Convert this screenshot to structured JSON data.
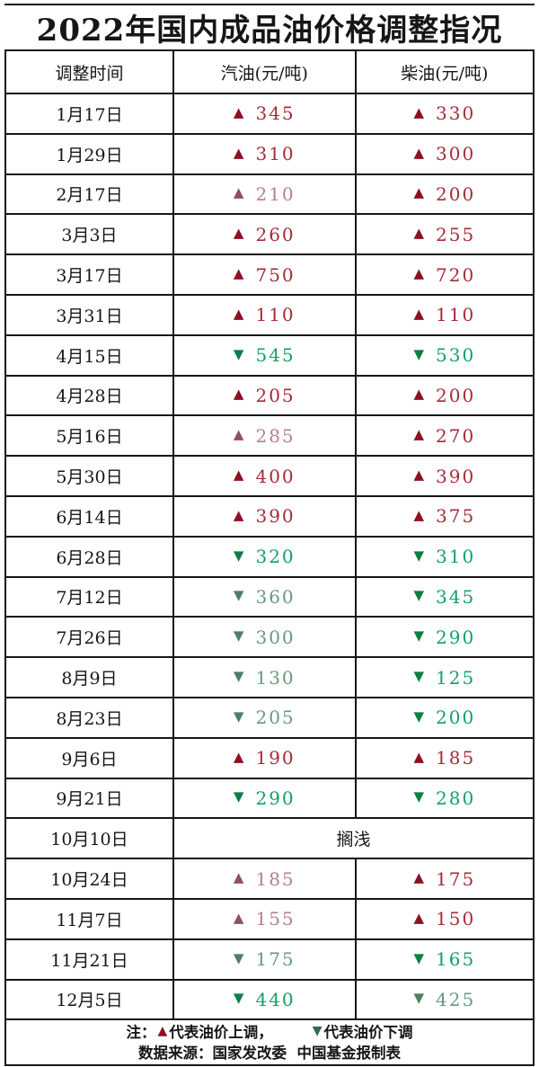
{
  "title": "2022年国内成品油价格调整指况",
  "glyphs": {
    "up": "▲",
    "down": "▼"
  },
  "colors": {
    "border": "#161616",
    "up": {
      "bright": {
        "arrow": "#8e1024",
        "num": "#a62b36"
      },
      "muted": {
        "arrow": "#8f4f5c",
        "num": "#b5818a"
      }
    },
    "down": {
      "bright": {
        "arrow": "#0b7f46",
        "num": "#12a161"
      },
      "muted": {
        "arrow": "#4f7f63",
        "num": "#68997e"
      }
    },
    "note_up": "#8e1024",
    "note_down": "#2f6a4c"
  },
  "header": {
    "date": "调整时间",
    "gasoline": "汽油(元/吨)",
    "diesel": "柴油(元/吨)"
  },
  "rows": [
    {
      "date": "1月17日",
      "gas": {
        "dir": "up",
        "value": "345",
        "tone": "bright"
      },
      "diesel": {
        "dir": "up",
        "value": "330",
        "tone": "bright"
      }
    },
    {
      "date": "1月29日",
      "gas": {
        "dir": "up",
        "value": "310",
        "tone": "bright"
      },
      "diesel": {
        "dir": "up",
        "value": "300",
        "tone": "bright"
      }
    },
    {
      "date": "2月17日",
      "gas": {
        "dir": "up",
        "value": "210",
        "tone": "muted"
      },
      "diesel": {
        "dir": "up",
        "value": "200",
        "tone": "bright"
      }
    },
    {
      "date": "3月3日",
      "gas": {
        "dir": "up",
        "value": "260",
        "tone": "bright"
      },
      "diesel": {
        "dir": "up",
        "value": "255",
        "tone": "bright"
      }
    },
    {
      "date": "3月17日",
      "gas": {
        "dir": "up",
        "value": "750",
        "tone": "bright"
      },
      "diesel": {
        "dir": "up",
        "value": "720",
        "tone": "bright"
      }
    },
    {
      "date": "3月31日",
      "gas": {
        "dir": "up",
        "value": "110",
        "tone": "bright"
      },
      "diesel": {
        "dir": "up",
        "value": "110",
        "tone": "bright"
      }
    },
    {
      "date": "4月15日",
      "gas": {
        "dir": "down",
        "value": "545",
        "tone": "bright"
      },
      "diesel": {
        "dir": "down",
        "value": "530",
        "tone": "bright"
      }
    },
    {
      "date": "4月28日",
      "gas": {
        "dir": "up",
        "value": "205",
        "tone": "bright"
      },
      "diesel": {
        "dir": "up",
        "value": "200",
        "tone": "bright"
      }
    },
    {
      "date": "5月16日",
      "gas": {
        "dir": "up",
        "value": "285",
        "tone": "muted"
      },
      "diesel": {
        "dir": "up",
        "value": "270",
        "tone": "bright"
      }
    },
    {
      "date": "5月30日",
      "gas": {
        "dir": "up",
        "value": "400",
        "tone": "bright"
      },
      "diesel": {
        "dir": "up",
        "value": "390",
        "tone": "bright"
      }
    },
    {
      "date": "6月14日",
      "gas": {
        "dir": "up",
        "value": "390",
        "tone": "bright"
      },
      "diesel": {
        "dir": "up",
        "value": "375",
        "tone": "bright"
      }
    },
    {
      "date": "6月28日",
      "gas": {
        "dir": "down",
        "value": "320",
        "tone": "bright"
      },
      "diesel": {
        "dir": "down",
        "value": "310",
        "tone": "bright"
      }
    },
    {
      "date": "7月12日",
      "gas": {
        "dir": "down",
        "value": "360",
        "tone": "muted"
      },
      "diesel": {
        "dir": "down",
        "value": "345",
        "tone": "bright"
      }
    },
    {
      "date": "7月26日",
      "gas": {
        "dir": "down",
        "value": "300",
        "tone": "muted"
      },
      "diesel": {
        "dir": "down",
        "value": "290",
        "tone": "bright"
      }
    },
    {
      "date": "8月9日",
      "gas": {
        "dir": "down",
        "value": "130",
        "tone": "muted"
      },
      "diesel": {
        "dir": "down",
        "value": "125",
        "tone": "bright"
      }
    },
    {
      "date": "8月23日",
      "gas": {
        "dir": "down",
        "value": "205",
        "tone": "muted"
      },
      "diesel": {
        "dir": "down",
        "value": "200",
        "tone": "bright"
      }
    },
    {
      "date": "9月6日",
      "gas": {
        "dir": "up",
        "value": "190",
        "tone": "bright"
      },
      "diesel": {
        "dir": "up",
        "value": "185",
        "tone": "bright"
      }
    },
    {
      "date": "9月21日",
      "gas": {
        "dir": "down",
        "value": "290",
        "tone": "bright"
      },
      "diesel": {
        "dir": "down",
        "value": "280",
        "tone": "bright"
      }
    },
    {
      "date": "10月10日",
      "merged": "搁浅"
    },
    {
      "date": "10月24日",
      "gas": {
        "dir": "up",
        "value": "185",
        "tone": "muted"
      },
      "diesel": {
        "dir": "up",
        "value": "175",
        "tone": "bright"
      }
    },
    {
      "date": "11月7日",
      "gas": {
        "dir": "up",
        "value": "155",
        "tone": "muted"
      },
      "diesel": {
        "dir": "up",
        "value": "150",
        "tone": "bright"
      }
    },
    {
      "date": "11月21日",
      "gas": {
        "dir": "down",
        "value": "175",
        "tone": "muted"
      },
      "diesel": {
        "dir": "down",
        "value": "165",
        "tone": "bright"
      }
    },
    {
      "date": "12月5日",
      "gas": {
        "dir": "down",
        "value": "440",
        "tone": "bright"
      },
      "diesel": {
        "dir": "down",
        "value": "425",
        "tone": "muted"
      }
    }
  ],
  "footer": {
    "note_prefix": "注：",
    "note_up_text": "代表油价上调，",
    "note_down_text": "代表油价下调",
    "source": "数据来源：国家发改委  中国基金报制表"
  },
  "chart_data": {
    "type": "table",
    "title": "2022年国内成品油价格调整指况",
    "columns": [
      "调整时间",
      "汽油(元/吨)",
      "柴油(元/吨)"
    ],
    "rows": [
      [
        "1月17日",
        "+345",
        "+330"
      ],
      [
        "1月29日",
        "+310",
        "+300"
      ],
      [
        "2月17日",
        "+210",
        "+200"
      ],
      [
        "3月3日",
        "+260",
        "+255"
      ],
      [
        "3月17日",
        "+750",
        "+720"
      ],
      [
        "3月31日",
        "+110",
        "+110"
      ],
      [
        "4月15日",
        "-545",
        "-530"
      ],
      [
        "4月28日",
        "+205",
        "+200"
      ],
      [
        "5月16日",
        "+285",
        "+270"
      ],
      [
        "5月30日",
        "+400",
        "+390"
      ],
      [
        "6月14日",
        "+390",
        "+375"
      ],
      [
        "6月28日",
        "-320",
        "-310"
      ],
      [
        "7月12日",
        "-360",
        "-345"
      ],
      [
        "7月26日",
        "-300",
        "-290"
      ],
      [
        "8月9日",
        "-130",
        "-125"
      ],
      [
        "8月23日",
        "-205",
        "-200"
      ],
      [
        "9月6日",
        "+190",
        "+185"
      ],
      [
        "9月21日",
        "-290",
        "-280"
      ],
      [
        "10月10日",
        "搁浅",
        "搁浅"
      ],
      [
        "10月24日",
        "+185",
        "+175"
      ],
      [
        "11月7日",
        "+155",
        "+150"
      ],
      [
        "11月21日",
        "-175",
        "-165"
      ],
      [
        "12月5日",
        "-440",
        "-425"
      ]
    ],
    "legend": "▲代表油价上调  ▼代表油价下调",
    "source": "数据来源：国家发改委  中国基金报制表"
  }
}
